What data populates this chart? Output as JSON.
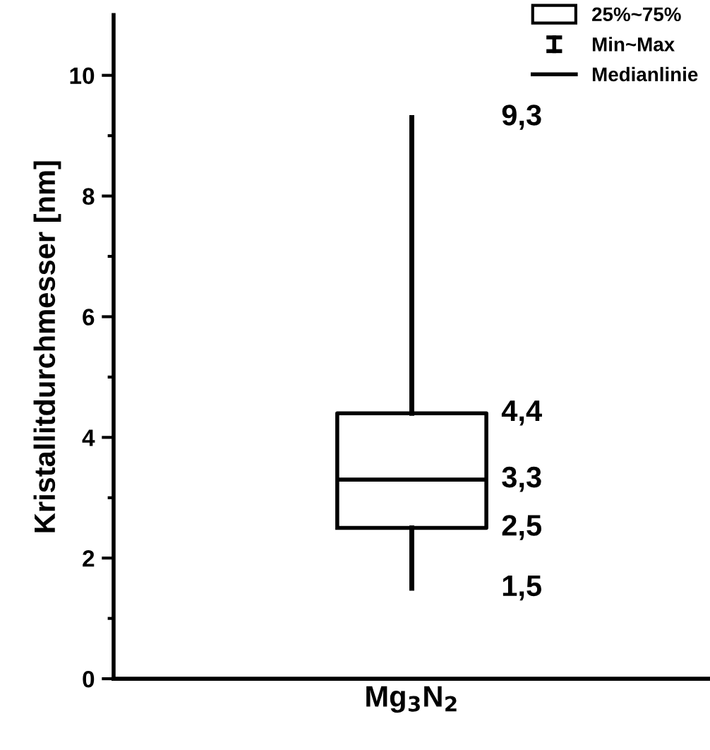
{
  "chart_data": {
    "type": "box",
    "ylabel": "Kristallitdurchmesser [nm]",
    "categories": [
      "Mg$_{3}$N$_{2}$"
    ],
    "series": [
      {
        "name": "25%~75%",
        "color": "#000000",
        "boxes": [
          {
            "low": 1.5,
            "q1": 2.5,
            "median": 3.3,
            "q3": 4.4,
            "high": 9.3
          }
        ]
      }
    ],
    "ylim": [
      0,
      11
    ],
    "yticks": [
      0,
      {
        "value": 1,
        "label": null
      },
      2,
      {
        "value": 3,
        "label": null
      },
      4,
      {
        "value": 5,
        "label": null
      },
      6,
      {
        "value": 7,
        "label": null
      },
      8,
      {
        "value": 9,
        "label": null
      },
      10
    ],
    "annotations": [
      "9,3",
      "4,4",
      "3,3",
      "2,5",
      "1,5",
      "Min~Max",
      "Medianlinie"
    ],
    "legend": "top right",
    "grid": false
  }
}
